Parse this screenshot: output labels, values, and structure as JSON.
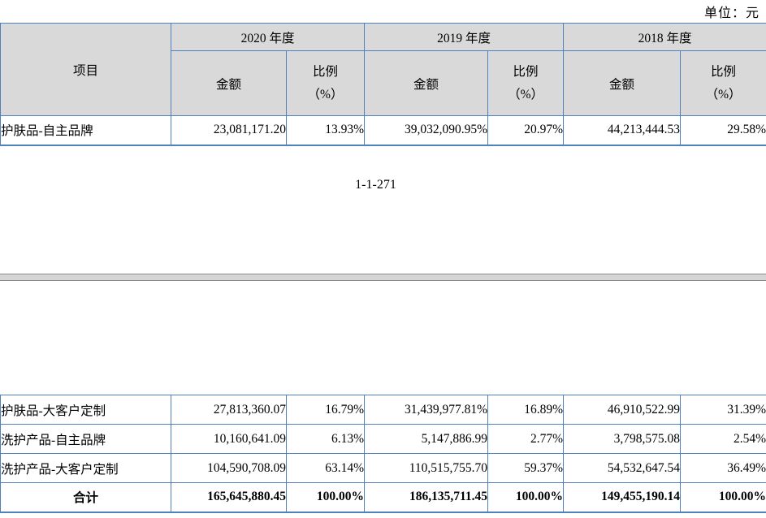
{
  "unit_label": "单位：元",
  "page_number": "1-1-271",
  "colors": {
    "table_border": "#4f81bd",
    "header_background": "#d9d9d9",
    "page_separator_band": "#d5d5d5",
    "page_separator_line": "#8a8a8a",
    "text": "#000000"
  },
  "table": {
    "headers": {
      "item": "项目",
      "years": [
        "2020 年度",
        "2019 年度",
        "2018 年度"
      ],
      "amount": "金额",
      "ratio": "比例",
      "ratio_unit": "（%）"
    },
    "page1_rows": [
      {
        "cells": [
          "护肤品-自主品牌",
          "23,081,171.20",
          "13.93%",
          "39,032,090.95%",
          "20.97%",
          "44,213,444.53",
          "29.58%"
        ]
      }
    ],
    "page2_rows": [
      {
        "cells": [
          "护肤品-大客户定制",
          "27,813,360.07",
          "16.79%",
          "31,439,977.81%",
          "16.89%",
          "46,910,522.99",
          "31.39%"
        ]
      },
      {
        "cells": [
          "洗护产品-自主品牌",
          "10,160,641.09",
          "6.13%",
          "5,147,886.99",
          "2.77%",
          "3,798,575.08",
          "2.54%"
        ]
      },
      {
        "cells": [
          "洗护产品-大客户定制",
          "104,590,708.09",
          "63.14%",
          "110,515,755.70",
          "59.37%",
          "54,532,647.54",
          "36.49%"
        ]
      },
      {
        "cells": [
          "合计",
          "165,645,880.45",
          "100.00%",
          "186,135,711.45",
          "100.00%",
          "149,455,190.14",
          "100.00%"
        ],
        "bold": true
      }
    ]
  }
}
